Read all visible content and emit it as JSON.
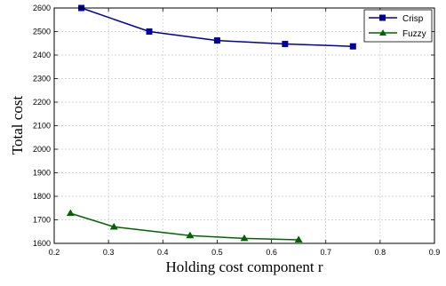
{
  "chart_data": {
    "type": "line",
    "xlabel": "Holding cost component r",
    "ylabel": "Total cost",
    "xlim": [
      0.2,
      0.9
    ],
    "ylim": [
      1600,
      2600
    ],
    "xticks": [
      "0.2",
      "0.3",
      "0.4",
      "0.5",
      "0.6",
      "0.7",
      "0.8",
      "0.9"
    ],
    "yticks": [
      "1600",
      "1700",
      "1800",
      "1900",
      "2000",
      "2100",
      "2200",
      "2300",
      "2400",
      "2500",
      "2600"
    ],
    "grid": true,
    "legend_position": "top-right",
    "series": [
      {
        "name": "Crisp",
        "color": "#0000a0",
        "marker": "square",
        "x": [
          0.25,
          0.375,
          0.5,
          0.625,
          0.75
        ],
        "y": [
          2600,
          2500,
          2462,
          2447,
          2437
        ]
      },
      {
        "name": "Fuzzy",
        "color": "#006400",
        "marker": "triangle",
        "x": [
          0.23,
          0.31,
          0.45,
          0.55,
          0.65
        ],
        "y": [
          1728,
          1670,
          1633,
          1621,
          1615
        ]
      }
    ]
  }
}
